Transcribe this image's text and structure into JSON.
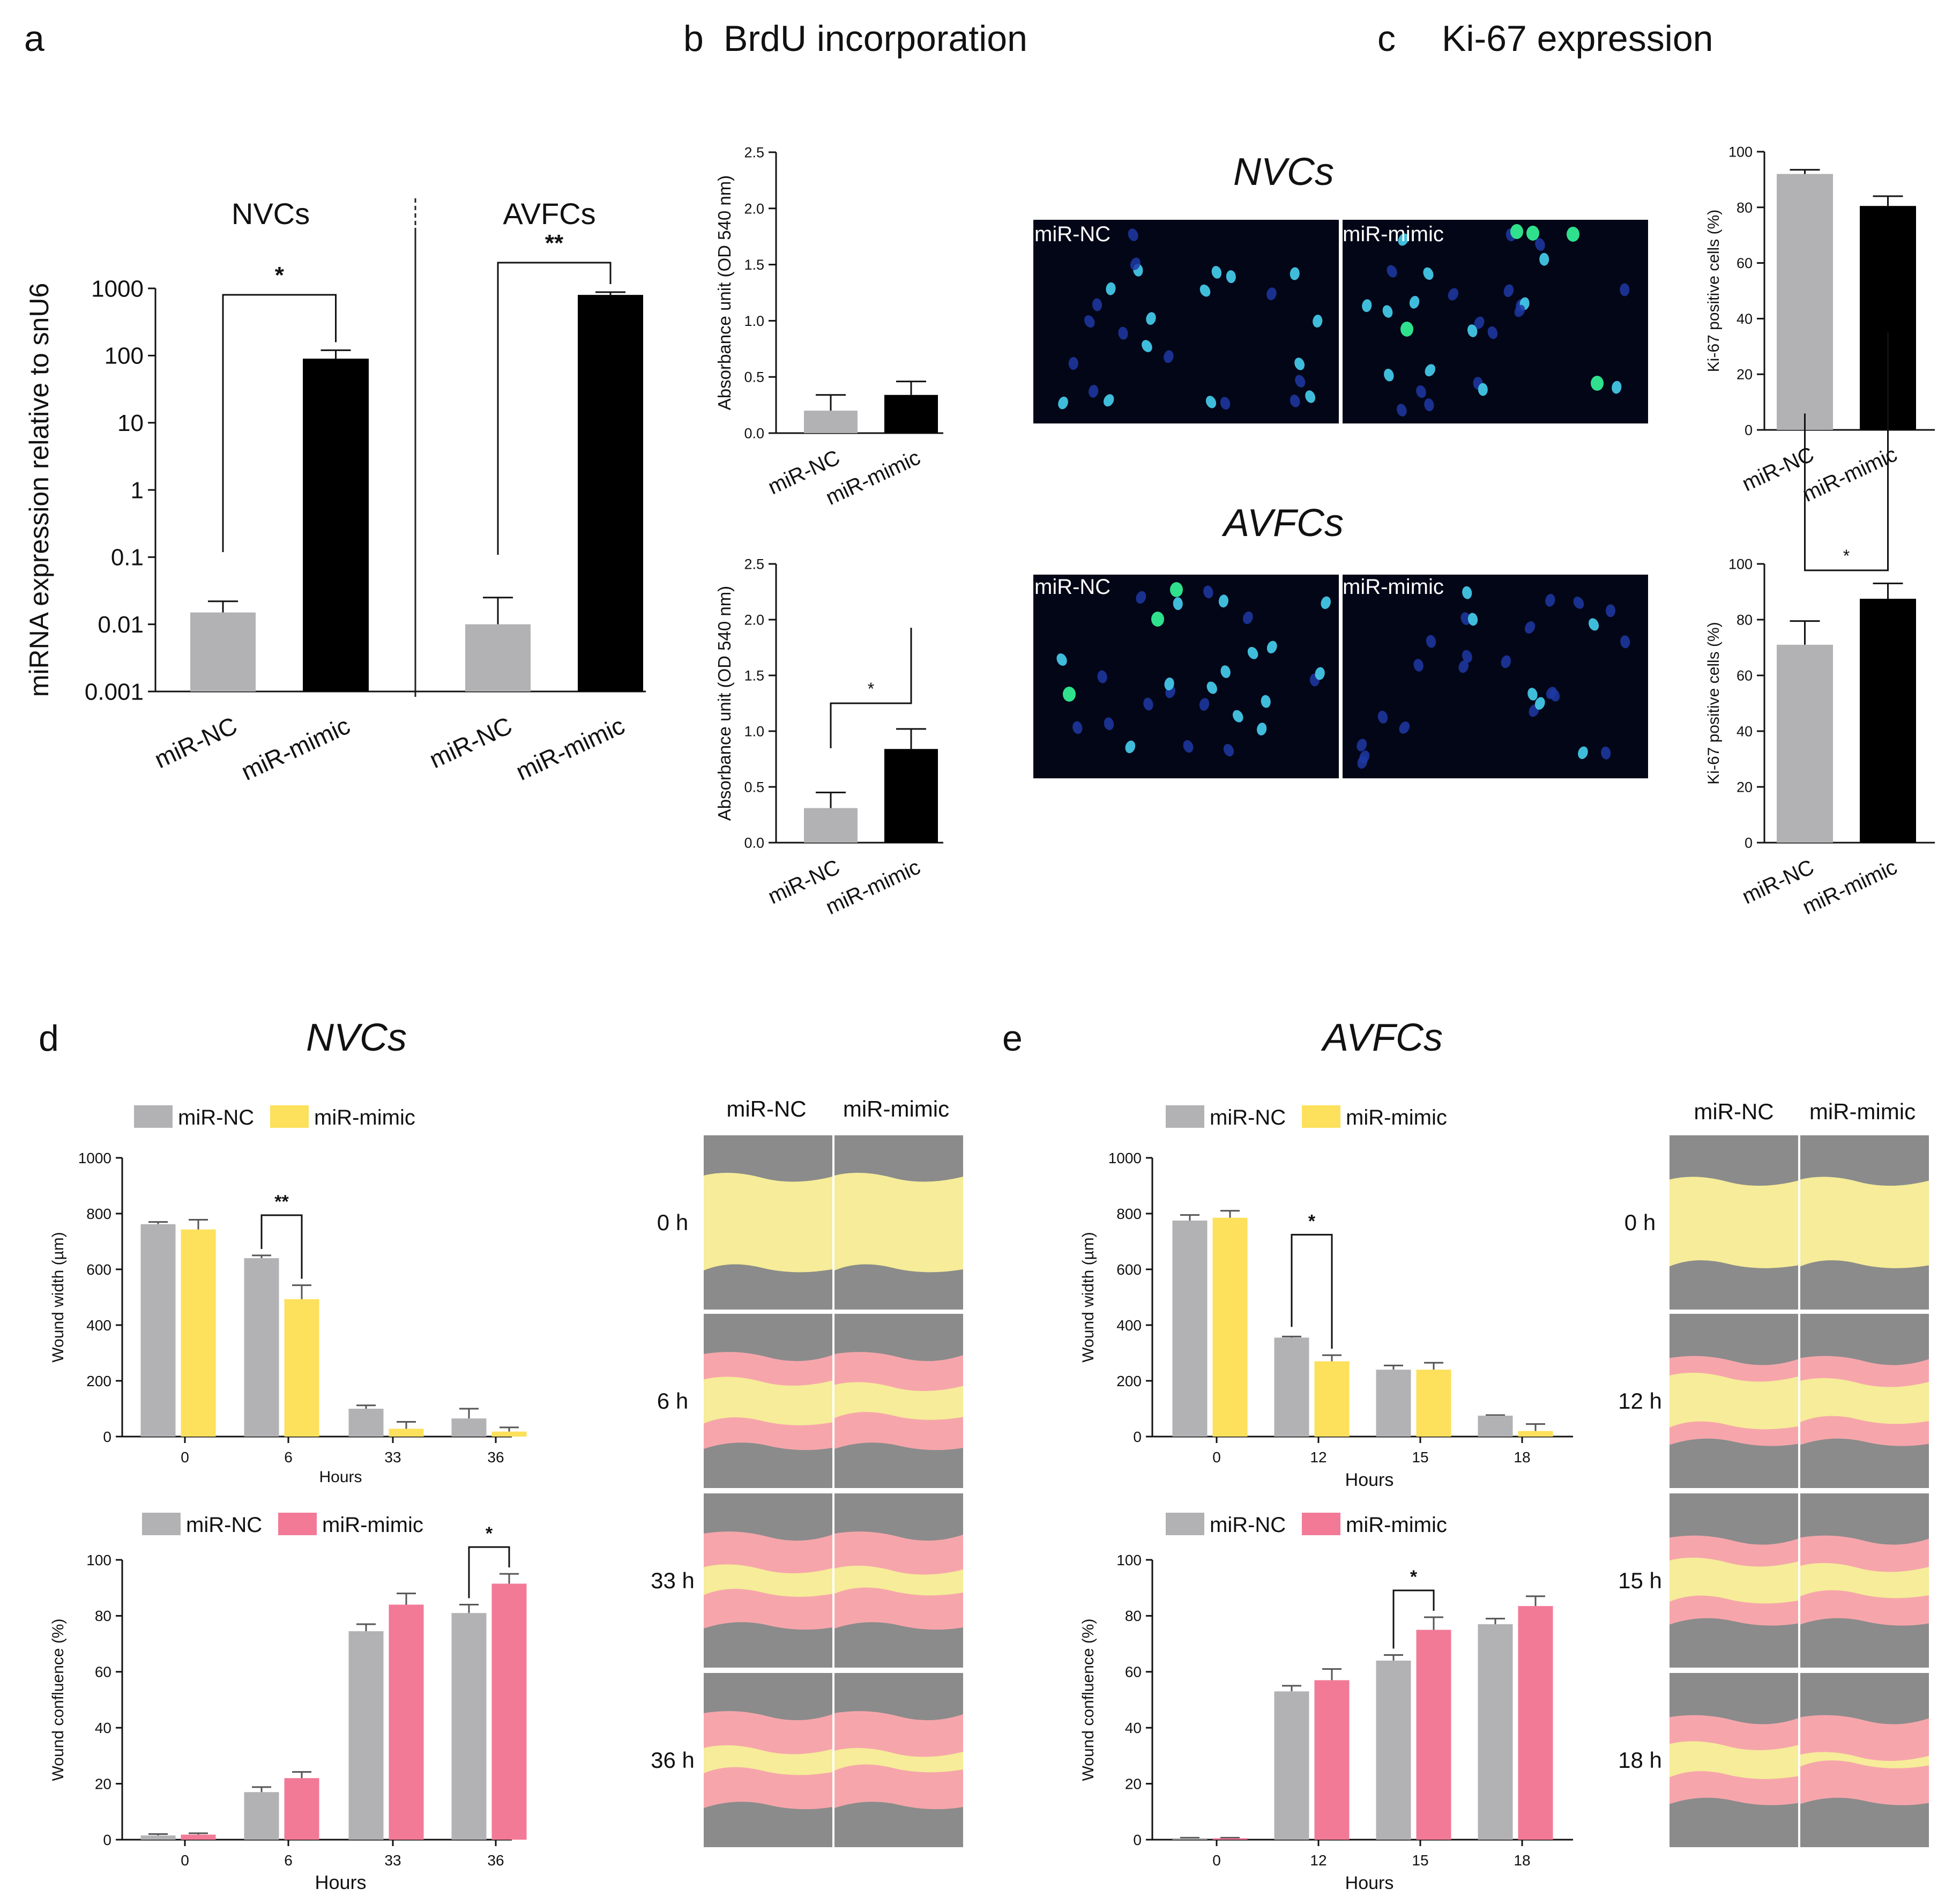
{
  "colors": {
    "gray": "#b2b2b4",
    "black": "#000000",
    "yellow": "#fde05b",
    "pink": "#f27a97",
    "micro_bg": "#030617",
    "wound_bg": "#8b8b8b",
    "wound_yellow": "#f6ec99",
    "wound_pink": "#f6a6ab"
  },
  "panels": {
    "a": {
      "letter": "a",
      "group1": "NVCs",
      "group2": "AVFCs"
    },
    "b": {
      "letter": "b",
      "title": "BrdU incorporation"
    },
    "c": {
      "letter": "c",
      "title": "Ki-67 expression",
      "row1_title": "NVCs",
      "row2_title": "AVFCs",
      "img_left": "miR-NC",
      "img_right": "miR-mimic"
    },
    "d": {
      "letter": "d",
      "title": "NVCs",
      "img_col1": "miR-NC",
      "img_col2": "miR-mimic",
      "time_labels": [
        "0 h",
        "6 h",
        "33 h",
        "36 h"
      ]
    },
    "e": {
      "letter": "e",
      "title": "AVFCs",
      "img_col1": "miR-NC",
      "img_col2": "miR-mimic",
      "time_labels": [
        "0 h",
        "12 h",
        "15 h",
        "18 h"
      ]
    }
  },
  "chart_data": [
    {
      "id": "a",
      "type": "bar",
      "scale": "log",
      "ylabel": "miRNA expression relative to snU6",
      "ylim": [
        0.001,
        1000
      ],
      "yticks": [
        "0.001",
        "0.01",
        "0.1",
        "1",
        "10",
        "100",
        "1000"
      ],
      "ytick_values": [
        0.001,
        0.01,
        0.1,
        1,
        10,
        100,
        1000
      ],
      "groups": [
        "NVCs",
        "AVFCs"
      ],
      "categories": [
        "miR-NC",
        "miR-mimic",
        "miR-NC",
        "miR-mimic"
      ],
      "values": [
        0.015,
        90,
        0.01,
        800
      ],
      "errors": [
        0.022,
        120,
        0.025,
        880
      ],
      "colors": [
        "gray",
        "black",
        "gray",
        "black"
      ],
      "significance": [
        "*",
        "**"
      ]
    },
    {
      "id": "b1",
      "type": "bar",
      "ylabel": "Absorbance unit (OD 540 nm)",
      "ylim": [
        0,
        2.5
      ],
      "yticks": [
        "0.0",
        "0.5",
        "1.0",
        "1.5",
        "2.0",
        "2.5"
      ],
      "categories": [
        "miR-NC",
        "miR-mimic"
      ],
      "values": [
        0.2,
        0.34
      ],
      "errors": [
        0.14,
        0.12
      ],
      "colors": [
        "gray",
        "black"
      ],
      "significance": ""
    },
    {
      "id": "b2",
      "type": "bar",
      "ylabel": "Absorbance unit (OD 540 nm)",
      "ylim": [
        0,
        2.5
      ],
      "yticks": [
        "0.0",
        "0.5",
        "1.0",
        "1.5",
        "2.0",
        "2.5"
      ],
      "categories": [
        "miR-NC",
        "miR-mimic"
      ],
      "values": [
        0.31,
        0.84
      ],
      "errors": [
        0.14,
        0.18
      ],
      "colors": [
        "gray",
        "black"
      ],
      "significance": "*"
    },
    {
      "id": "c1",
      "type": "bar",
      "ylabel": "Ki-67 positive cells (%)",
      "ylim": [
        0,
        100
      ],
      "yticks": [
        "0",
        "20",
        "40",
        "60",
        "80",
        "100"
      ],
      "categories": [
        "miR-NC",
        "miR-mimic"
      ],
      "values": [
        92,
        80.5
      ],
      "errors": [
        1.5,
        3.5
      ],
      "colors": [
        "gray",
        "black"
      ],
      "significance": ""
    },
    {
      "id": "c2",
      "type": "bar",
      "ylabel": "Ki-67 positive cells (%)",
      "ylim": [
        0,
        100
      ],
      "yticks": [
        "0",
        "20",
        "40",
        "60",
        "80",
        "100"
      ],
      "categories": [
        "miR-NC",
        "miR-mimic"
      ],
      "values": [
        71,
        87.5
      ],
      "errors": [
        8.5,
        5.5
      ],
      "colors": [
        "gray",
        "black"
      ],
      "significance": "*"
    },
    {
      "id": "d1",
      "type": "bar",
      "ylabel": "Wound width (µm)",
      "xlabel": "Hours",
      "ylim": [
        0,
        1000
      ],
      "yticks": [
        "0",
        "200",
        "400",
        "600",
        "800",
        "1000"
      ],
      "categories": [
        "0",
        "6",
        "33",
        "36"
      ],
      "series": [
        {
          "name": "miR-NC",
          "color": "gray",
          "values": [
            762,
            640,
            100,
            65
          ],
          "errors": [
            8,
            10,
            12,
            35
          ]
        },
        {
          "name": "miR-mimic",
          "color": "yellow",
          "values": [
            743,
            493,
            28,
            18
          ],
          "errors": [
            35,
            50,
            25,
            15
          ]
        }
      ],
      "significance": [
        {
          "category": 1,
          "label": "**"
        }
      ]
    },
    {
      "id": "d2",
      "type": "bar",
      "ylabel": "Wound confluence (%)",
      "xlabel": "Hours",
      "ylim": [
        0,
        100
      ],
      "yticks": [
        "0",
        "20",
        "40",
        "60",
        "80",
        "100"
      ],
      "categories": [
        "0",
        "6",
        "33",
        "36"
      ],
      "series": [
        {
          "name": "miR-NC",
          "color": "gray",
          "values": [
            1.5,
            17,
            74.5,
            81
          ],
          "errors": [
            0.5,
            1.8,
            2.5,
            3
          ]
        },
        {
          "name": "miR-mimic",
          "color": "pink",
          "values": [
            1.8,
            22,
            84,
            91.5
          ],
          "errors": [
            0.5,
            2.2,
            4,
            3.5
          ]
        }
      ],
      "significance": [
        {
          "category": 3,
          "label": "*"
        }
      ]
    },
    {
      "id": "e1",
      "type": "bar",
      "ylabel": "Wound width (µm)",
      "xlabel": "Hours",
      "ylim": [
        0,
        1000
      ],
      "yticks": [
        "0",
        "200",
        "400",
        "600",
        "800",
        "1000"
      ],
      "categories": [
        "0",
        "12",
        "15",
        "18"
      ],
      "series": [
        {
          "name": "miR-NC",
          "color": "gray",
          "values": [
            775,
            355,
            240,
            75
          ],
          "errors": [
            20,
            4,
            15,
            2
          ]
        },
        {
          "name": "miR-mimic",
          "color": "yellow",
          "values": [
            785,
            270,
            240,
            20
          ],
          "errors": [
            25,
            22,
            25,
            25
          ]
        }
      ],
      "significance": [
        {
          "category": 1,
          "label": "*"
        }
      ]
    },
    {
      "id": "e2",
      "type": "bar",
      "ylabel": "Wound confluence (%)",
      "xlabel": "Hours",
      "ylim": [
        0,
        100
      ],
      "yticks": [
        "0",
        "20",
        "40",
        "60",
        "80",
        "100"
      ],
      "categories": [
        "0",
        "12",
        "15",
        "18"
      ],
      "series": [
        {
          "name": "miR-NC",
          "color": "gray",
          "values": [
            0.5,
            53,
            64,
            77
          ],
          "errors": [
            0.2,
            2,
            2,
            2
          ]
        },
        {
          "name": "miR-mimic",
          "color": "pink",
          "values": [
            0.5,
            57,
            75,
            83.5
          ],
          "errors": [
            0.2,
            4,
            4.5,
            3.5
          ]
        }
      ],
      "significance": [
        {
          "category": 2,
          "label": "*"
        }
      ]
    }
  ]
}
